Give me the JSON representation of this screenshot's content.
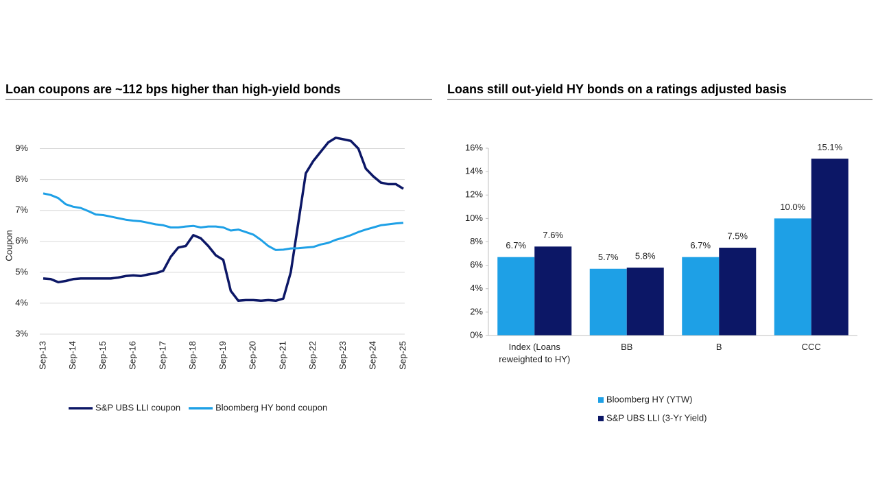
{
  "chart_data": [
    {
      "type": "line",
      "title": "Loan coupons are ~112 bps higher than high-yield bonds",
      "y_label": "Coupon",
      "categories": [
        "Sep-13",
        null,
        null,
        null,
        "Sep-14",
        null,
        null,
        null,
        "Sep-15",
        null,
        null,
        null,
        "Sep-16",
        null,
        null,
        null,
        "Sep-17",
        null,
        null,
        null,
        "Sep-18",
        null,
        null,
        null,
        "Sep-19",
        null,
        null,
        null,
        "Sep-20",
        null,
        null,
        null,
        "Sep-21",
        null,
        null,
        null,
        "Sep-22",
        null,
        null,
        null,
        "Sep-23",
        null,
        null,
        null,
        "Sep-24",
        null,
        null,
        null,
        "Sep-25"
      ],
      "series": [
        {
          "name": "S&P UBS LLI coupon",
          "color": "#0c1766",
          "values": [
            4.8,
            4.78,
            4.68,
            4.72,
            4.78,
            4.8,
            4.8,
            4.8,
            4.8,
            4.8,
            4.83,
            4.88,
            4.9,
            4.88,
            4.93,
            4.97,
            5.05,
            5.5,
            5.8,
            5.85,
            6.2,
            6.1,
            5.85,
            5.55,
            5.4,
            4.4,
            4.08,
            4.1,
            4.1,
            4.08,
            4.1,
            4.08,
            4.15,
            5.0,
            6.6,
            8.2,
            8.6,
            8.9,
            9.2,
            9.35,
            9.3,
            9.25,
            9.0,
            8.35,
            8.1,
            7.9,
            7.85,
            7.85,
            7.7
          ]
        },
        {
          "name": "Bloomberg HY bond coupon",
          "color": "#1ea0e6",
          "values": [
            7.55,
            7.5,
            7.4,
            7.2,
            7.12,
            7.08,
            6.98,
            6.87,
            6.85,
            6.8,
            6.75,
            6.7,
            6.67,
            6.65,
            6.6,
            6.55,
            6.52,
            6.45,
            6.45,
            6.48,
            6.5,
            6.45,
            6.48,
            6.48,
            6.45,
            6.35,
            6.38,
            6.3,
            6.22,
            6.05,
            5.85,
            5.72,
            5.73,
            5.77,
            5.78,
            5.8,
            5.82,
            5.9,
            5.95,
            6.05,
            6.12,
            6.2,
            6.3,
            6.38,
            6.45,
            6.52,
            6.55,
            6.58,
            6.6
          ]
        }
      ],
      "ylim": [
        3,
        9.5
      ],
      "yticks": [
        {
          "value": 3,
          "label": "3%"
        },
        {
          "value": 4,
          "label": "4%"
        },
        {
          "value": 5,
          "label": "5%"
        },
        {
          "value": 6,
          "label": "6%"
        },
        {
          "value": 7,
          "label": "7%"
        },
        {
          "value": 8,
          "label": "8%"
        },
        {
          "value": 9,
          "label": "9%"
        }
      ],
      "grid": true,
      "legend": "bottom"
    },
    {
      "type": "bar",
      "title": "Loans still out-yield HY bonds on a ratings adjusted basis",
      "categories": [
        "Index (Loans reweighted to HY)",
        "BB",
        "B",
        "CCC"
      ],
      "series": [
        {
          "name": "Bloomberg HY (YTW)",
          "color": "#1ea0e6",
          "values": [
            6.7,
            5.7,
            6.7,
            10.0
          ],
          "value_labels": [
            "6.7%",
            "5.7%",
            "6.7%",
            "10.0%"
          ]
        },
        {
          "name": "S&P UBS LLI (3-Yr Yield)",
          "color": "#0c1766",
          "values": [
            7.6,
            5.8,
            7.5,
            15.1
          ],
          "value_labels": [
            "7.6%",
            "5.8%",
            "7.5%",
            "15.1%"
          ]
        }
      ],
      "ylim": [
        0,
        16
      ],
      "yticks": [
        {
          "value": 0,
          "label": "0%"
        },
        {
          "value": 2,
          "label": "2%"
        },
        {
          "value": 4,
          "label": "4%"
        },
        {
          "value": 6,
          "label": "6%"
        },
        {
          "value": 8,
          "label": "8%"
        },
        {
          "value": 10,
          "label": "10%"
        },
        {
          "value": 12,
          "label": "12%"
        },
        {
          "value": 14,
          "label": "14%"
        },
        {
          "value": 16,
          "label": "16%"
        }
      ],
      "grid": false,
      "legend": "bottom-left"
    }
  ]
}
